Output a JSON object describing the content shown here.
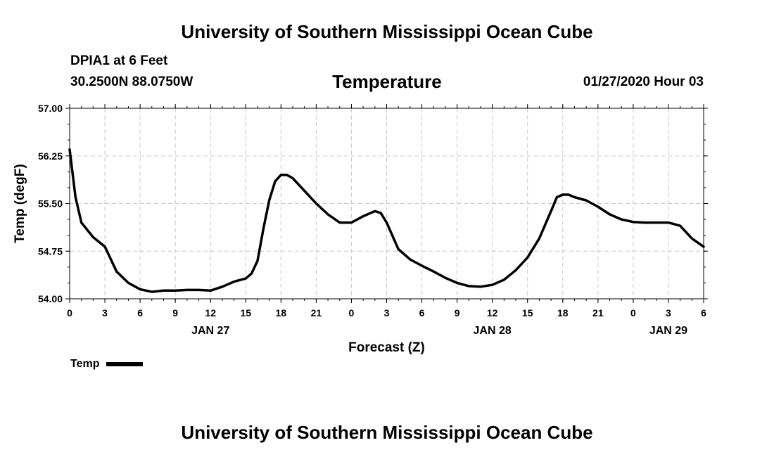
{
  "header": {
    "title": "University of Southern Mississippi Ocean Cube",
    "station": "DPIA1 at 6 Feet",
    "coordinates": "30.2500N 88.0750W",
    "parameter": "Temperature",
    "datetime": "01/27/2020 Hour 03"
  },
  "footer": {
    "title": "University of Southern Mississippi Ocean Cube"
  },
  "chart_data": {
    "type": "line",
    "xlabel": "Forecast (Z)",
    "ylabel": "Temp (degF)",
    "xlim": [
      0,
      54
    ],
    "ylim": [
      54.0,
      57.0
    ],
    "yticks": [
      "54.00",
      "54.75",
      "55.50",
      "56.25",
      "57.00"
    ],
    "xticks": {
      "hours": [
        0,
        3,
        6,
        9,
        12,
        15,
        18,
        21,
        24,
        27,
        30,
        33,
        36,
        39,
        42,
        45,
        48,
        51,
        54
      ],
      "labels": [
        "0",
        "3",
        "6",
        "9",
        "12",
        "15",
        "18",
        "21",
        "0",
        "3",
        "6",
        "9",
        "12",
        "15",
        "18",
        "21",
        "0",
        "3",
        "6"
      ]
    },
    "day_labels": [
      {
        "hour": 12,
        "label": "JAN 27"
      },
      {
        "hour": 36,
        "label": "JAN 28"
      },
      {
        "hour": 51,
        "label": "JAN 29"
      }
    ],
    "grid": true,
    "legend_position": "bottom-left",
    "series": [
      {
        "name": "Temp",
        "color": "#000000",
        "x": [
          0,
          0.5,
          1,
          2,
          3,
          4,
          5,
          6,
          7,
          8,
          9,
          10,
          11,
          12,
          13,
          14,
          15,
          15.5,
          16,
          16.5,
          17,
          17.5,
          18,
          18.5,
          19,
          20,
          21,
          22,
          23,
          24,
          25,
          26,
          26.5,
          27,
          28,
          29,
          30,
          31,
          32,
          33,
          34,
          35,
          36,
          37,
          38,
          39,
          40,
          41,
          41.5,
          42,
          42.5,
          43,
          44,
          45,
          46,
          47,
          48,
          49,
          50,
          51,
          52,
          53,
          54
        ],
        "values": [
          56.35,
          55.6,
          55.2,
          54.97,
          54.82,
          54.43,
          54.25,
          54.15,
          54.11,
          54.13,
          54.13,
          54.14,
          54.14,
          54.13,
          54.19,
          54.27,
          54.32,
          54.4,
          54.6,
          55.1,
          55.55,
          55.85,
          55.95,
          55.95,
          55.9,
          55.7,
          55.5,
          55.33,
          55.2,
          55.2,
          55.3,
          55.38,
          55.35,
          55.2,
          54.78,
          54.62,
          54.52,
          54.43,
          54.33,
          54.25,
          54.2,
          54.19,
          54.22,
          54.3,
          54.45,
          54.65,
          54.95,
          55.38,
          55.6,
          55.64,
          55.64,
          55.6,
          55.55,
          55.45,
          55.33,
          55.25,
          55.21,
          55.2,
          55.2,
          55.2,
          55.15,
          54.95,
          54.82
        ]
      }
    ]
  }
}
